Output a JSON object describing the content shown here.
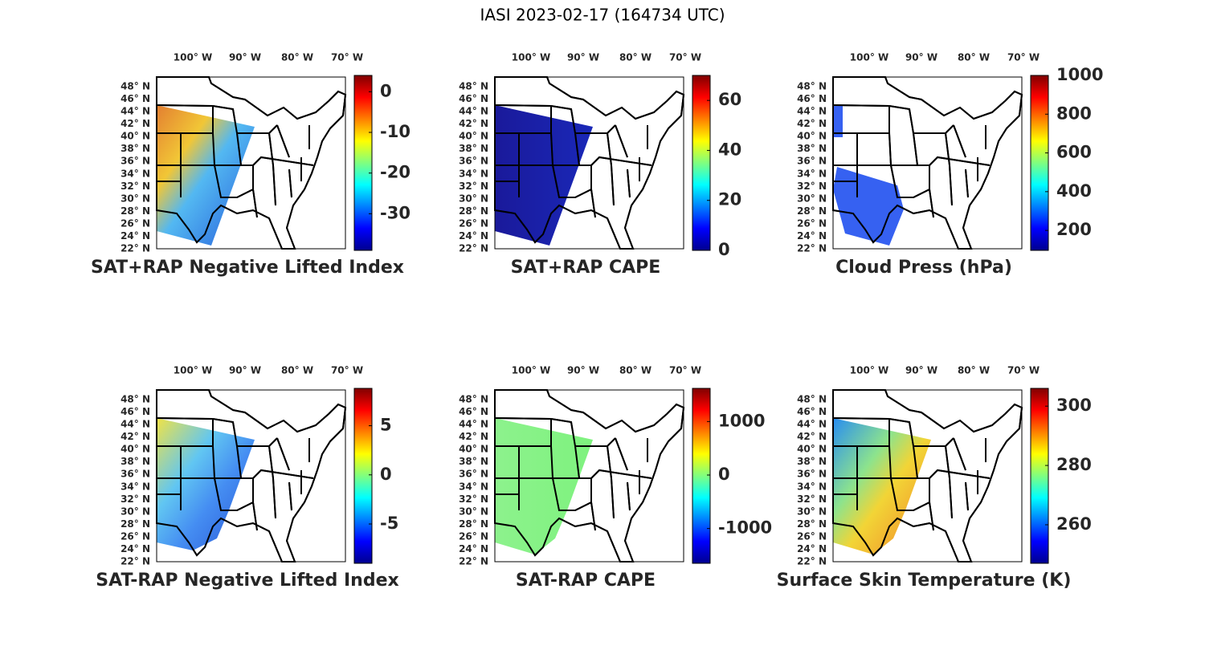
{
  "title": "IASI 2023-02-17 (164734 UTC)",
  "panels": [
    {
      "title": "SAT+RAP Negative Lifted Index",
      "lon_labels": [
        "100° W",
        "90° W",
        "80° W",
        "70° W"
      ],
      "lat_labels": [
        "48° N",
        "46° N",
        "44° N",
        "42° N",
        "40° N",
        "38° N",
        "36° N",
        "34° N",
        "32° N",
        "30° N",
        "28° N",
        "26° N",
        "24° N",
        "22° N"
      ],
      "colorbar": {
        "clim": [
          -39,
          4
        ],
        "ticks": [
          0,
          -10,
          -20,
          -30
        ]
      }
    },
    {
      "title": "SAT+RAP CAPE",
      "lon_labels": [
        "100° W",
        "90° W",
        "80° W",
        "70° W"
      ],
      "lat_labels": [
        "48° N",
        "46° N",
        "44° N",
        "42° N",
        "40° N",
        "38° N",
        "36° N",
        "34° N",
        "32° N",
        "30° N",
        "28° N",
        "26° N",
        "24° N",
        "22° N"
      ],
      "colorbar": {
        "clim": [
          0,
          70
        ],
        "ticks": [
          60,
          40,
          20,
          0
        ]
      }
    },
    {
      "title": "Cloud Press (hPa)",
      "lon_labels": [
        "100° W",
        "90° W",
        "80° W",
        "70° W"
      ],
      "lat_labels": [
        "48° N",
        "46° N",
        "44° N",
        "42° N",
        "40° N",
        "38° N",
        "36° N",
        "34° N",
        "32° N",
        "30° N",
        "28° N",
        "26° N",
        "24° N",
        "22° N"
      ],
      "colorbar": {
        "clim": [
          97,
          1000
        ],
        "ticks": [
          1000,
          800,
          600,
          400,
          200
        ]
      }
    },
    {
      "title": "SAT-RAP Negative Lifted Index",
      "lon_labels": [
        "100° W",
        "90° W",
        "80° W",
        "70° W"
      ],
      "lat_labels": [
        "48° N",
        "46° N",
        "44° N",
        "42° N",
        "40° N",
        "38° N",
        "36° N",
        "34° N",
        "32° N",
        "30° N",
        "28° N",
        "26° N",
        "24° N",
        "22° N"
      ],
      "colorbar": {
        "clim": [
          -9,
          8.8
        ],
        "ticks": [
          5,
          0,
          -5
        ]
      }
    },
    {
      "title": "SAT-RAP CAPE",
      "lon_labels": [
        "100° W",
        "90° W",
        "80° W",
        "70° W"
      ],
      "lat_labels": [
        "48° N",
        "46° N",
        "44° N",
        "42° N",
        "40° N",
        "38° N",
        "36° N",
        "34° N",
        "32° N",
        "30° N",
        "28° N",
        "26° N",
        "24° N",
        "22° N"
      ],
      "colorbar": {
        "clim": [
          -1650,
          1620
        ],
        "ticks": [
          1000,
          0,
          -1000
        ]
      }
    },
    {
      "title": "Surface Skin Temperature (K)",
      "lon_labels": [
        "100° W",
        "90° W",
        "80° W",
        "70° W"
      ],
      "lat_labels": [
        "48° N",
        "46° N",
        "44° N",
        "42° N",
        "40° N",
        "38° N",
        "36° N",
        "34° N",
        "32° N",
        "30° N",
        "28° N",
        "26° N",
        "24° N",
        "22° N"
      ],
      "colorbar": {
        "clim": [
          247,
          306
        ],
        "ticks": [
          300,
          280,
          260
        ]
      }
    }
  ]
}
